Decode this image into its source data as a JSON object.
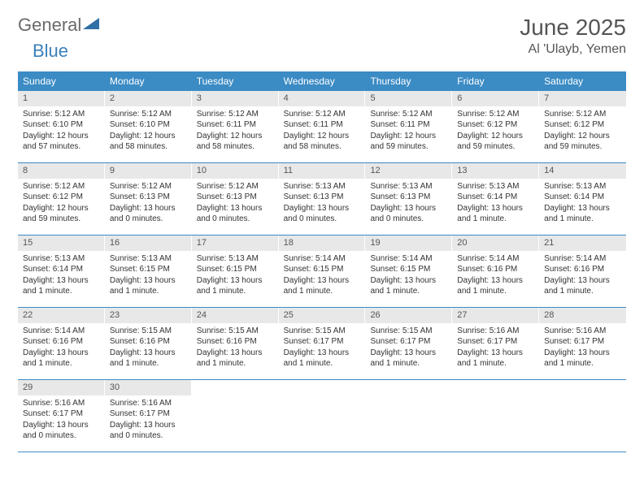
{
  "logo": {
    "general": "General",
    "blue": "Blue"
  },
  "title": {
    "month": "June 2025",
    "location": "Al 'Ulayb, Yemen"
  },
  "colors": {
    "header_bg": "#3b8bc4",
    "header_text": "#ffffff",
    "daynum_bg": "#e8e8e8",
    "border": "#3b8bc4",
    "logo_gray": "#6b6b6b",
    "logo_blue": "#3b7fb8"
  },
  "weekdays": [
    "Sunday",
    "Monday",
    "Tuesday",
    "Wednesday",
    "Thursday",
    "Friday",
    "Saturday"
  ],
  "weeks": [
    [
      {
        "n": "1",
        "sr": "Sunrise: 5:12 AM",
        "ss": "Sunset: 6:10 PM",
        "dl": "Daylight: 12 hours and 57 minutes."
      },
      {
        "n": "2",
        "sr": "Sunrise: 5:12 AM",
        "ss": "Sunset: 6:10 PM",
        "dl": "Daylight: 12 hours and 58 minutes."
      },
      {
        "n": "3",
        "sr": "Sunrise: 5:12 AM",
        "ss": "Sunset: 6:11 PM",
        "dl": "Daylight: 12 hours and 58 minutes."
      },
      {
        "n": "4",
        "sr": "Sunrise: 5:12 AM",
        "ss": "Sunset: 6:11 PM",
        "dl": "Daylight: 12 hours and 58 minutes."
      },
      {
        "n": "5",
        "sr": "Sunrise: 5:12 AM",
        "ss": "Sunset: 6:11 PM",
        "dl": "Daylight: 12 hours and 59 minutes."
      },
      {
        "n": "6",
        "sr": "Sunrise: 5:12 AM",
        "ss": "Sunset: 6:12 PM",
        "dl": "Daylight: 12 hours and 59 minutes."
      },
      {
        "n": "7",
        "sr": "Sunrise: 5:12 AM",
        "ss": "Sunset: 6:12 PM",
        "dl": "Daylight: 12 hours and 59 minutes."
      }
    ],
    [
      {
        "n": "8",
        "sr": "Sunrise: 5:12 AM",
        "ss": "Sunset: 6:12 PM",
        "dl": "Daylight: 12 hours and 59 minutes."
      },
      {
        "n": "9",
        "sr": "Sunrise: 5:12 AM",
        "ss": "Sunset: 6:13 PM",
        "dl": "Daylight: 13 hours and 0 minutes."
      },
      {
        "n": "10",
        "sr": "Sunrise: 5:12 AM",
        "ss": "Sunset: 6:13 PM",
        "dl": "Daylight: 13 hours and 0 minutes."
      },
      {
        "n": "11",
        "sr": "Sunrise: 5:13 AM",
        "ss": "Sunset: 6:13 PM",
        "dl": "Daylight: 13 hours and 0 minutes."
      },
      {
        "n": "12",
        "sr": "Sunrise: 5:13 AM",
        "ss": "Sunset: 6:13 PM",
        "dl": "Daylight: 13 hours and 0 minutes."
      },
      {
        "n": "13",
        "sr": "Sunrise: 5:13 AM",
        "ss": "Sunset: 6:14 PM",
        "dl": "Daylight: 13 hours and 1 minute."
      },
      {
        "n": "14",
        "sr": "Sunrise: 5:13 AM",
        "ss": "Sunset: 6:14 PM",
        "dl": "Daylight: 13 hours and 1 minute."
      }
    ],
    [
      {
        "n": "15",
        "sr": "Sunrise: 5:13 AM",
        "ss": "Sunset: 6:14 PM",
        "dl": "Daylight: 13 hours and 1 minute."
      },
      {
        "n": "16",
        "sr": "Sunrise: 5:13 AM",
        "ss": "Sunset: 6:15 PM",
        "dl": "Daylight: 13 hours and 1 minute."
      },
      {
        "n": "17",
        "sr": "Sunrise: 5:13 AM",
        "ss": "Sunset: 6:15 PM",
        "dl": "Daylight: 13 hours and 1 minute."
      },
      {
        "n": "18",
        "sr": "Sunrise: 5:14 AM",
        "ss": "Sunset: 6:15 PM",
        "dl": "Daylight: 13 hours and 1 minute."
      },
      {
        "n": "19",
        "sr": "Sunrise: 5:14 AM",
        "ss": "Sunset: 6:15 PM",
        "dl": "Daylight: 13 hours and 1 minute."
      },
      {
        "n": "20",
        "sr": "Sunrise: 5:14 AM",
        "ss": "Sunset: 6:16 PM",
        "dl": "Daylight: 13 hours and 1 minute."
      },
      {
        "n": "21",
        "sr": "Sunrise: 5:14 AM",
        "ss": "Sunset: 6:16 PM",
        "dl": "Daylight: 13 hours and 1 minute."
      }
    ],
    [
      {
        "n": "22",
        "sr": "Sunrise: 5:14 AM",
        "ss": "Sunset: 6:16 PM",
        "dl": "Daylight: 13 hours and 1 minute."
      },
      {
        "n": "23",
        "sr": "Sunrise: 5:15 AM",
        "ss": "Sunset: 6:16 PM",
        "dl": "Daylight: 13 hours and 1 minute."
      },
      {
        "n": "24",
        "sr": "Sunrise: 5:15 AM",
        "ss": "Sunset: 6:16 PM",
        "dl": "Daylight: 13 hours and 1 minute."
      },
      {
        "n": "25",
        "sr": "Sunrise: 5:15 AM",
        "ss": "Sunset: 6:17 PM",
        "dl": "Daylight: 13 hours and 1 minute."
      },
      {
        "n": "26",
        "sr": "Sunrise: 5:15 AM",
        "ss": "Sunset: 6:17 PM",
        "dl": "Daylight: 13 hours and 1 minute."
      },
      {
        "n": "27",
        "sr": "Sunrise: 5:16 AM",
        "ss": "Sunset: 6:17 PM",
        "dl": "Daylight: 13 hours and 1 minute."
      },
      {
        "n": "28",
        "sr": "Sunrise: 5:16 AM",
        "ss": "Sunset: 6:17 PM",
        "dl": "Daylight: 13 hours and 1 minute."
      }
    ],
    [
      {
        "n": "29",
        "sr": "Sunrise: 5:16 AM",
        "ss": "Sunset: 6:17 PM",
        "dl": "Daylight: 13 hours and 0 minutes."
      },
      {
        "n": "30",
        "sr": "Sunrise: 5:16 AM",
        "ss": "Sunset: 6:17 PM",
        "dl": "Daylight: 13 hours and 0 minutes."
      },
      {
        "empty": true
      },
      {
        "empty": true
      },
      {
        "empty": true
      },
      {
        "empty": true
      },
      {
        "empty": true
      }
    ]
  ]
}
